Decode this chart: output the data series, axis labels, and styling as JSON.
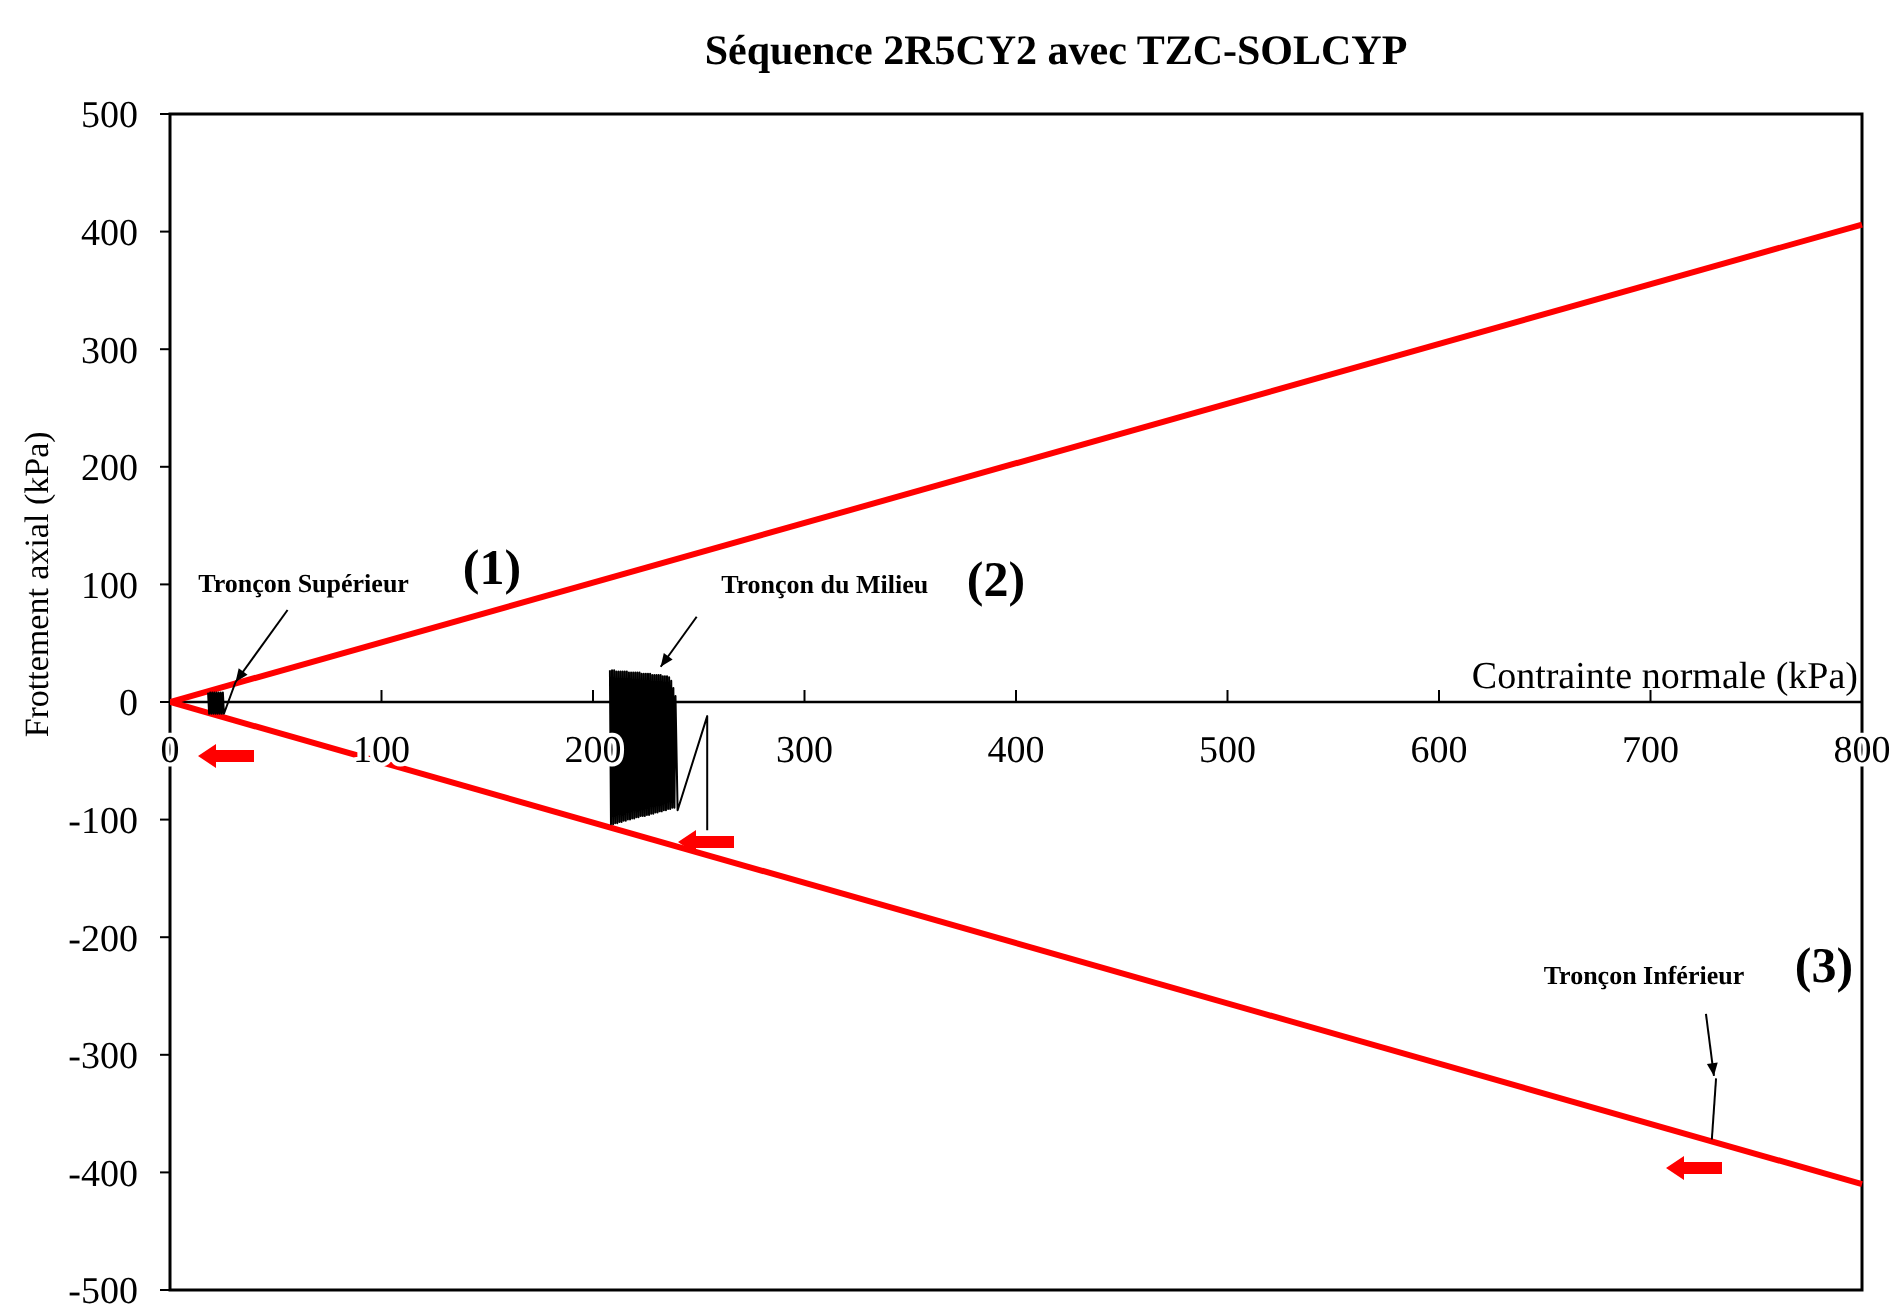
{
  "chart_data": {
    "type": "line",
    "title": "Séquence 2R5CY2 avec TZC-SOLCYP",
    "xlabel": "Contrainte normale (kPa)",
    "ylabel": "Frottement axial (kPa)",
    "xlim": [
      0,
      800
    ],
    "xticks": [
      0,
      100,
      200,
      300,
      400,
      500,
      600,
      700,
      800
    ],
    "ylim": [
      -500,
      500
    ],
    "yticks": [
      -500,
      -400,
      -300,
      -200,
      -100,
      0,
      100,
      200,
      300,
      400,
      500
    ],
    "series": [
      {
        "color": "#ff0000",
        "x": [
          0,
          800
        ],
        "values": [
          0,
          406
        ]
      },
      {
        "color": "#ff0000",
        "x": [
          0,
          800
        ],
        "values": [
          0,
          -410
        ]
      },
      {
        "color": "#000000",
        "x": [
          18,
          18.5,
          19,
          19.5,
          20,
          20.5,
          21,
          21.5,
          22,
          22.5,
          23,
          23.5,
          24,
          24.5,
          25,
          25.5,
          31
        ],
        "values": [
          8,
          -10,
          8,
          -10,
          8,
          -10,
          8,
          -10,
          8,
          -10,
          8,
          -10,
          8,
          -10,
          8,
          -10,
          17
        ]
      },
      {
        "color": "#000000",
        "x": [
          208,
          208.5,
          209,
          209.5,
          210,
          210.5,
          211,
          211.5,
          212,
          212.5,
          213,
          213.5,
          214,
          214.5,
          215,
          215.5,
          216,
          216.5,
          217,
          217.5,
          218,
          218.5,
          219,
          219.5,
          220,
          220.5,
          221,
          221.5,
          222,
          222.5,
          223,
          223.5,
          224,
          224.5,
          225,
          225.5,
          226,
          226.5,
          227,
          227.5,
          228,
          228.5,
          229,
          229.5,
          230,
          230.5,
          231,
          231.5,
          232,
          232.5,
          233,
          233.5,
          234,
          234.5,
          235,
          235.5,
          236,
          236.5,
          237,
          237.5,
          238,
          238.5,
          239,
          240,
          254,
          254
        ],
        "values": [
          27,
          -104,
          27,
          -104,
          27,
          -103,
          26,
          -103,
          26,
          -102,
          26,
          -102,
          26,
          -101,
          26,
          -101,
          26,
          -100,
          25,
          -100,
          25,
          -99,
          25,
          -99,
          25,
          -98,
          25,
          -98,
          25,
          -97,
          24,
          -97,
          24,
          -97,
          24,
          -96,
          24,
          -96,
          24,
          -95,
          23,
          -95,
          23,
          -94,
          23,
          -94,
          23,
          -93,
          23,
          -93,
          22,
          -92,
          22,
          -92,
          22,
          -91,
          21,
          -91,
          18,
          -90,
          12,
          -90,
          5,
          -92,
          -12,
          -109
        ]
      },
      {
        "color": "#000000",
        "x": [
          731,
          729
        ],
        "values": [
          -320,
          -372
        ]
      }
    ],
    "annotations": [
      {
        "text": "Tronçon Supérieur",
        "x": 31,
        "y": 17
      },
      "(1)",
      {
        "text": "Tronçon du Milieu",
        "x": 232,
        "y": 30
      },
      "(2)",
      {
        "text": "Tronçon Inférieur",
        "x": 730,
        "y": -318
      },
      "(3)"
    ]
  }
}
